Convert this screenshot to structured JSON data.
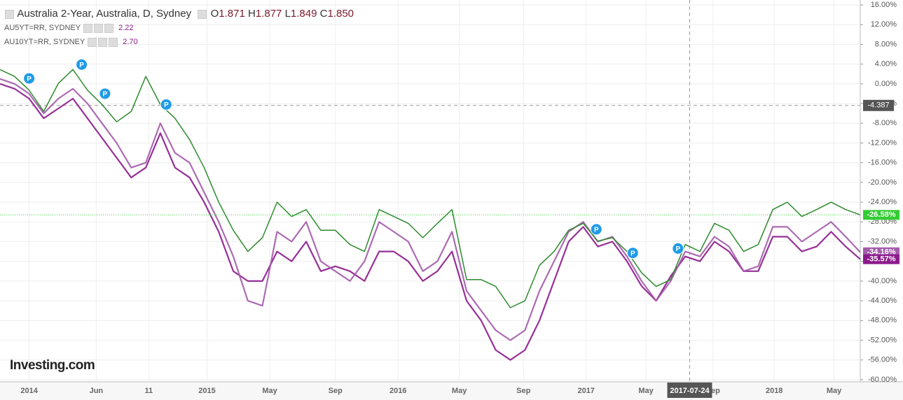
{
  "chart_data": {
    "type": "line",
    "title": "Australia 2-Year, Australia, D, Sydney",
    "ohlc": [
      {
        "label": "O",
        "value": "1.871"
      },
      {
        "label": "H",
        "value": "1.877"
      },
      {
        "label": "L",
        "value": "1.849"
      },
      {
        "label": "C",
        "value": "1.850"
      }
    ],
    "logo": "Investing.com",
    "xlim": [
      0,
      59
    ],
    "xticks": [
      {
        "value": 2.0,
        "label": "2014"
      },
      {
        "value": 6.6,
        "label": "Jun"
      },
      {
        "value": 10.2,
        "label": "11"
      },
      {
        "value": 14.2,
        "label": "2015"
      },
      {
        "value": 18.5,
        "label": "May"
      },
      {
        "value": 23.0,
        "label": "Sep"
      },
      {
        "value": 27.3,
        "label": "2016"
      },
      {
        "value": 31.5,
        "label": "May"
      },
      {
        "value": 35.9,
        "label": "Sep"
      },
      {
        "value": 40.2,
        "label": "2017"
      },
      {
        "value": 44.3,
        "label": "May"
      },
      {
        "value": 48.9,
        "label": "Sep"
      },
      {
        "value": 53.1,
        "label": "2018"
      },
      {
        "value": 57.2,
        "label": "May"
      }
    ],
    "ylim": [
      -61,
      17
    ],
    "yticks": [
      {
        "value": 16,
        "label": "16.00%"
      },
      {
        "value": 12,
        "label": "12.00%"
      },
      {
        "value": 8,
        "label": "8.00%"
      },
      {
        "value": 4,
        "label": "4.00%"
      },
      {
        "value": 0,
        "label": "0.00%"
      },
      {
        "value": -4,
        "label": "-4.00%"
      },
      {
        "value": -8,
        "label": "-8.00%"
      },
      {
        "value": -12,
        "label": "-12.00%"
      },
      {
        "value": -16,
        "label": "-16.00%"
      },
      {
        "value": -20,
        "label": "-20.00%"
      },
      {
        "value": -24,
        "label": "-24.00%"
      },
      {
        "value": -28,
        "label": "-28.00%"
      },
      {
        "value": -32,
        "label": "-32.00%"
      },
      {
        "value": -36,
        "label": "-36.00%"
      },
      {
        "value": -40,
        "label": "-40.00%"
      },
      {
        "value": -44,
        "label": "-44.00%"
      },
      {
        "value": -48,
        "label": "-48.00%"
      },
      {
        "value": -52,
        "label": "-52.00%"
      },
      {
        "value": -56,
        "label": "-56.00%"
      },
      {
        "value": -60,
        "label": "-60.00%"
      }
    ],
    "grid": true,
    "crosshair": {
      "x": 47.3,
      "x_label": "2017-07-24",
      "y": -4.387,
      "y_label": "-4.387"
    },
    "markers": [
      {
        "x": 2.0,
        "y": 1.1,
        "label": "P"
      },
      {
        "x": 5.6,
        "y": 3.9,
        "label": "P"
      },
      {
        "x": 7.2,
        "y": -2.0,
        "label": "P"
      },
      {
        "x": 11.4,
        "y": -4.2,
        "label": "P"
      },
      {
        "x": 40.9,
        "y": -29.5,
        "label": "P"
      },
      {
        "x": 43.4,
        "y": -34.3,
        "label": "P"
      },
      {
        "x": 46.5,
        "y": -33.4,
        "label": "P"
      }
    ],
    "series": [
      {
        "name": "Australia 2-Year",
        "color": "#2e8b2e",
        "last_label": "-26.58%",
        "values": [
          2.9,
          1.5,
          -1.3,
          -5.6,
          0.1,
          2.9,
          -1.3,
          -4.2,
          -7.7,
          -5.6,
          1.5,
          -4.2,
          -7,
          -11.3,
          -17,
          -24,
          -29.7,
          -34,
          -31.2,
          -24,
          -26.9,
          -25.5,
          -29.7,
          -29.7,
          -32.6,
          -34,
          -25.5,
          -26.9,
          -28.3,
          -31.2,
          -28.3,
          -25.5,
          -39.7,
          -39.7,
          -41.1,
          -45.4,
          -44,
          -36.8,
          -34,
          -29.7,
          -28.3,
          -31.9,
          -31.2,
          -34,
          -38.3,
          -41.1,
          -39.7,
          -32.6,
          -34,
          -28.3,
          -29.7,
          -34,
          -32.6,
          -25.5,
          -24,
          -26.9,
          -25.5,
          -24,
          -25.5,
          -26.58
        ]
      },
      {
        "name": "AU5YT=RR, SYDNEY",
        "last": "2.22",
        "color": "#a35bab",
        "last_label": "-34.16%",
        "values": [
          1,
          0,
          -2,
          -6,
          -3,
          -1,
          -4,
          -8,
          -12,
          -17,
          -16,
          -8,
          -14,
          -16,
          -22,
          -28,
          -35,
          -44,
          -45,
          -30,
          -32,
          -28,
          -36,
          -38,
          -40,
          -36,
          -28,
          -30,
          -32,
          -38,
          -36,
          -30,
          -42,
          -46,
          -50,
          -52,
          -50,
          -42,
          -36,
          -30,
          -28,
          -32,
          -31,
          -35,
          -40,
          -44,
          -40,
          -34,
          -35,
          -31,
          -33,
          -38,
          -37,
          -29,
          -29,
          -32,
          -30,
          -28,
          -31,
          -34.16
        ]
      },
      {
        "name": "AU10YT=RR, SYDNEY",
        "last": "2.70",
        "color": "#8b1a8b",
        "last_label": "-35.57%",
        "values": [
          0,
          -1,
          -3,
          -7,
          -5,
          -3,
          -7,
          -11,
          -15,
          -19,
          -17,
          -10,
          -17,
          -19,
          -24,
          -30,
          -38,
          -40,
          -40,
          -34,
          -36,
          -32,
          -38,
          -37,
          -38,
          -40,
          -34,
          -34,
          -36,
          -40,
          -38,
          -34,
          -44,
          -48,
          -54,
          -56,
          -54,
          -48,
          -40,
          -32,
          -29,
          -33,
          -32,
          -36,
          -41,
          -44,
          -39,
          -35,
          -36,
          -32,
          -34,
          -38,
          -38,
          -31,
          -31,
          -34,
          -33,
          -30,
          -33,
          -35.57
        ]
      }
    ]
  }
}
